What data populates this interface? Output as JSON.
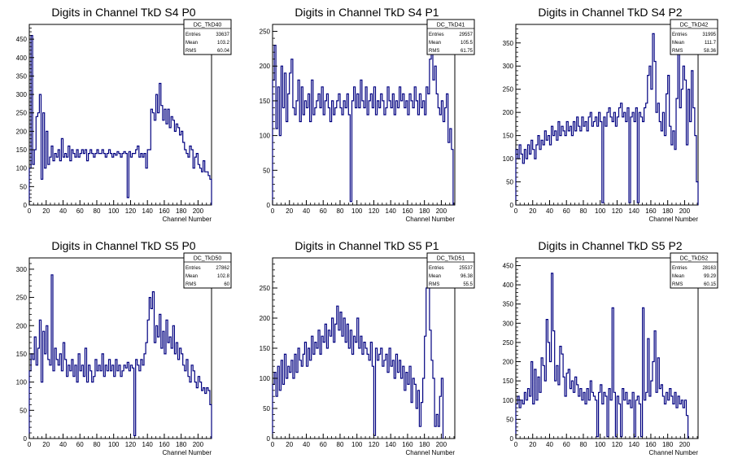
{
  "chart_data": [
    {
      "type": "histogram",
      "title": "Digits in Channel TkD S4 P0",
      "xlabel": "Channel Number",
      "ylabel": "",
      "xlim": [
        0,
        216
      ],
      "ylim": [
        0,
        490
      ],
      "xticks": [
        0,
        20,
        40,
        60,
        80,
        100,
        120,
        140,
        160,
        180,
        200
      ],
      "yticks": [
        0,
        50,
        100,
        150,
        200,
        250,
        300,
        350,
        400,
        450
      ],
      "stats": {
        "name": "DC_TkD40",
        "entries_label": "Entries",
        "entries": "33637",
        "mean_label": "Mean",
        "mean": "103.2",
        "rms_label": "RMS",
        "rms": "60.04"
      },
      "bin_width": 2,
      "values": [
        100,
        460,
        110,
        150,
        240,
        250,
        300,
        70,
        250,
        100,
        200,
        110,
        130,
        160,
        120,
        140,
        130,
        150,
        120,
        180,
        130,
        140,
        130,
        160,
        120,
        150,
        140,
        130,
        150,
        130,
        140,
        150,
        140,
        150,
        120,
        140,
        150,
        140,
        130,
        140,
        150,
        140,
        140,
        150,
        140,
        130,
        140,
        150,
        140,
        130,
        140,
        135,
        145,
        140,
        130,
        140,
        145,
        140,
        20,
        145,
        130,
        140,
        140,
        150,
        160,
        130,
        140,
        130,
        140,
        100,
        150,
        150,
        260,
        250,
        230,
        300,
        250,
        330,
        270,
        230,
        260,
        220,
        260,
        210,
        240,
        230,
        200,
        220,
        210,
        190,
        200,
        170,
        150,
        140,
        130,
        160,
        150,
        100,
        130,
        140,
        110,
        100,
        90,
        120,
        90,
        90,
        80,
        70
      ]
    },
    {
      "type": "histogram",
      "title": "Digits in Channel TkD S4 P1",
      "xlabel": "Channel Number",
      "ylabel": "",
      "xlim": [
        0,
        216
      ],
      "ylim": [
        0,
        260
      ],
      "xticks": [
        0,
        20,
        40,
        60,
        80,
        100,
        120,
        140,
        160,
        180,
        200
      ],
      "yticks": [
        0,
        50,
        100,
        150,
        200,
        250
      ],
      "stats": {
        "name": "DC_TkD41",
        "entries_label": "Entries",
        "entries": "29557",
        "mean_label": "Mean",
        "mean": "105.5",
        "rms_label": "RMS",
        "rms": "61.75"
      },
      "bin_width": 2,
      "values": [
        180,
        230,
        110,
        170,
        100,
        200,
        140,
        190,
        120,
        160,
        190,
        210,
        140,
        130,
        150,
        180,
        120,
        170,
        130,
        150,
        140,
        160,
        120,
        180,
        130,
        140,
        150,
        160,
        140,
        170,
        130,
        150,
        160,
        140,
        120,
        150,
        130,
        140,
        150,
        160,
        140,
        130,
        150,
        140,
        160,
        130,
        5,
        150,
        170,
        140,
        160,
        140,
        180,
        150,
        140,
        170,
        130,
        150,
        160,
        140,
        170,
        130,
        150,
        140,
        160,
        150,
        130,
        140,
        170,
        150,
        140,
        160,
        130,
        150,
        140,
        170,
        150,
        160,
        140,
        150,
        130,
        160,
        150,
        140,
        170,
        150,
        130,
        160,
        140,
        150,
        130,
        170,
        160,
        210,
        250,
        180,
        200,
        160,
        140,
        130,
        150,
        120,
        140,
        160,
        90,
        110,
        80
      ]
    },
    {
      "type": "histogram",
      "title": "Digits in Channel TkD S4 P2",
      "xlabel": "Channel Number",
      "ylabel": "",
      "xlim": [
        0,
        216
      ],
      "ylim": [
        0,
        390
      ],
      "xticks": [
        0,
        20,
        40,
        60,
        80,
        100,
        120,
        140,
        160,
        180,
        200
      ],
      "yticks": [
        0,
        50,
        100,
        150,
        200,
        250,
        300,
        350
      ],
      "stats": {
        "name": "DC_TkD42",
        "entries_label": "Entries",
        "entries": "31995",
        "mean_label": "Mean",
        "mean": "111.7",
        "rms_label": "RMS",
        "rms": "58.36"
      },
      "bin_width": 2,
      "values": [
        120,
        100,
        130,
        110,
        90,
        120,
        100,
        130,
        110,
        140,
        120,
        100,
        130,
        150,
        120,
        140,
        130,
        160,
        140,
        150,
        130,
        170,
        150,
        160,
        140,
        180,
        150,
        170,
        160,
        150,
        180,
        160,
        170,
        150,
        180,
        160,
        190,
        170,
        160,
        190,
        170,
        180,
        160,
        190,
        200,
        170,
        180,
        190,
        170,
        200,
        180,
        5,
        190,
        170,
        200,
        210,
        190,
        180,
        200,
        170,
        190,
        210,
        220,
        190,
        200,
        180,
        210,
        5,
        190,
        200,
        180,
        210,
        5,
        200,
        190,
        180,
        210,
        220,
        280,
        300,
        250,
        370,
        310,
        200,
        220,
        180,
        160,
        200,
        150,
        240,
        280,
        170,
        130,
        160,
        120,
        230,
        330,
        210,
        250,
        300,
        270,
        130,
        250,
        180,
        290,
        210,
        150,
        50,
        30
      ]
    },
    {
      "type": "histogram",
      "title": "Digits in Channel TkD S5 P0",
      "xlabel": "Channel Number",
      "ylabel": "",
      "xlim": [
        0,
        216
      ],
      "ylim": [
        0,
        320
      ],
      "xticks": [
        0,
        20,
        40,
        60,
        80,
        100,
        120,
        140,
        160,
        180,
        200
      ],
      "yticks": [
        0,
        50,
        100,
        150,
        200,
        250,
        300
      ],
      "stats": {
        "name": "DC_TkD50",
        "entries_label": "Entries",
        "entries": "27862",
        "mean_label": "Mean",
        "mean": "102.8",
        "rms_label": "RMS",
        "rms": "60"
      },
      "bin_width": 2,
      "values": [
        120,
        150,
        140,
        180,
        130,
        160,
        210,
        100,
        190,
        150,
        200,
        140,
        130,
        290,
        120,
        160,
        140,
        130,
        150,
        120,
        170,
        140,
        110,
        130,
        120,
        140,
        110,
        130,
        100,
        150,
        120,
        130,
        110,
        160,
        100,
        130,
        120,
        100,
        110,
        140,
        120,
        130,
        120,
        150,
        110,
        130,
        120,
        140,
        120,
        130,
        110,
        140,
        120,
        130,
        110,
        120,
        130,
        125,
        135,
        120,
        130,
        125,
        5,
        140,
        130,
        120,
        140,
        130,
        150,
        170,
        210,
        250,
        230,
        260,
        170,
        200,
        180,
        220,
        160,
        190,
        150,
        210,
        170,
        180,
        160,
        200,
        150,
        170,
        140,
        160,
        150,
        130,
        120,
        140,
        110,
        100,
        130,
        120,
        100,
        90,
        110,
        100,
        85,
        90,
        80,
        90,
        85,
        60
      ]
    },
    {
      "type": "histogram",
      "title": "Digits in Channel TkD S5 P1",
      "xlabel": "Channel Number",
      "ylabel": "",
      "xlim": [
        0,
        216
      ],
      "ylim": [
        0,
        300
      ],
      "xticks": [
        0,
        20,
        40,
        60,
        80,
        100,
        120,
        140,
        160,
        180,
        200
      ],
      "yticks": [
        0,
        50,
        100,
        150,
        200,
        250
      ],
      "stats": {
        "name": "DC_TkD51",
        "entries_label": "Entries",
        "entries": "25537",
        "mean_label": "Mean",
        "mean": "96.38",
        "rms_label": "RMS",
        "rms": "55.5"
      },
      "bin_width": 2,
      "values": [
        90,
        110,
        70,
        120,
        80,
        130,
        90,
        140,
        100,
        120,
        110,
        130,
        100,
        140,
        110,
        150,
        130,
        120,
        140,
        160,
        120,
        150,
        130,
        170,
        140,
        160,
        150,
        180,
        140,
        170,
        160,
        190,
        150,
        180,
        170,
        200,
        160,
        190,
        220,
        180,
        210,
        170,
        200,
        160,
        190,
        150,
        180,
        140,
        170,
        160,
        200,
        150,
        170,
        140,
        160,
        150,
        140,
        130,
        160,
        120,
        5,
        150,
        130,
        140,
        150,
        120,
        130,
        140,
        110,
        150,
        120,
        130,
        100,
        140,
        110,
        130,
        100,
        120,
        80,
        110,
        90,
        120,
        60,
        100,
        90,
        50,
        80,
        20,
        60,
        100,
        170,
        250,
        290,
        180,
        130,
        100,
        20,
        40,
        20,
        70,
        100
      ]
    },
    {
      "type": "histogram",
      "title": "Digits in Channel TkD S5 P2",
      "xlabel": "Channel Number",
      "ylabel": "",
      "xlim": [
        0,
        216
      ],
      "ylim": [
        0,
        470
      ],
      "xticks": [
        0,
        20,
        40,
        60,
        80,
        100,
        120,
        140,
        160,
        180,
        200
      ],
      "yticks": [
        0,
        50,
        100,
        150,
        200,
        250,
        300,
        350,
        400,
        450
      ],
      "stats": {
        "name": "DC_TkD52",
        "entries_label": "Entries",
        "entries": "28163",
        "mean_label": "Mean",
        "mean": "99.29",
        "rms_label": "RMS",
        "rms": "60.15"
      },
      "bin_width": 2,
      "values": [
        90,
        110,
        80,
        100,
        90,
        120,
        100,
        130,
        110,
        200,
        90,
        180,
        100,
        160,
        120,
        210,
        190,
        150,
        310,
        250,
        200,
        430,
        280,
        150,
        190,
        140,
        240,
        220,
        160,
        110,
        170,
        180,
        130,
        150,
        120,
        160,
        140,
        110,
        130,
        100,
        120,
        90,
        130,
        100,
        150,
        120,
        110,
        100,
        5,
        120,
        140,
        90,
        120,
        110,
        5,
        130,
        100,
        340,
        120,
        5,
        110,
        90,
        5,
        130,
        100,
        120,
        90,
        100,
        80,
        120,
        5,
        100,
        110,
        90,
        5,
        340,
        100,
        120,
        260,
        110,
        150,
        200,
        280,
        120,
        210,
        130,
        140,
        110,
        90,
        120,
        100,
        130,
        110,
        90,
        120,
        80,
        110,
        90,
        100,
        80,
        100,
        60
      ]
    }
  ]
}
